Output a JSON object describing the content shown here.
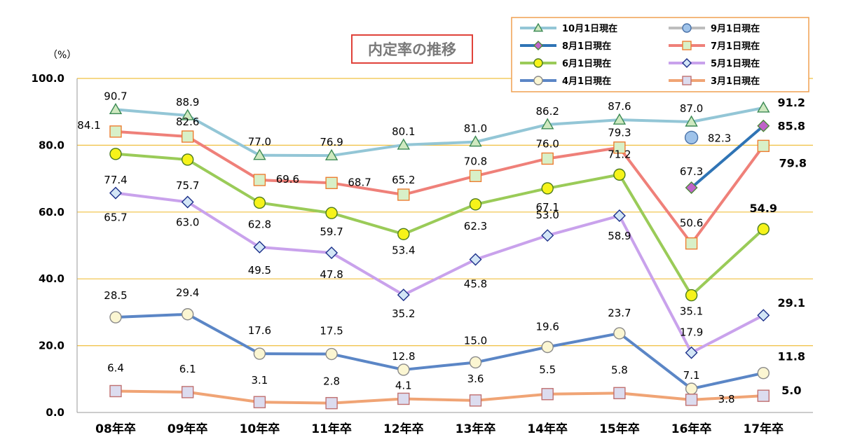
{
  "chart_data": {
    "type": "line",
    "title": "内定率の推移",
    "ylabel": "（%）",
    "ylim": [
      0,
      100
    ],
    "yticks": [
      "0.0",
      "20.0",
      "40.0",
      "60.0",
      "80.0",
      "100.0"
    ],
    "categories": [
      "08年卒",
      "09年卒",
      "10年卒",
      "11年卒",
      "12年卒",
      "13年卒",
      "14年卒",
      "15年卒",
      "16年卒",
      "17年卒"
    ],
    "series": [
      {
        "name": "10月1日現在",
        "color": "#93c6d6",
        "marker": "triangle",
        "markerFill": "#cfe9c0",
        "markerStroke": "#3c8a55",
        "values": [
          90.7,
          88.9,
          77.0,
          76.9,
          80.1,
          81.0,
          86.2,
          87.6,
          87.0,
          91.2
        ],
        "labels": [
          "90.7",
          "88.9",
          "77.0",
          "76.9",
          "80.1",
          "81.0",
          "86.2",
          "87.6",
          "87.0",
          "91.2"
        ]
      },
      {
        "name": "9月1日現在",
        "color": "#bdbdbd",
        "marker": "circle",
        "markerFill": "#9fc3ea",
        "markerStroke": "#4a72a8",
        "values": [
          null,
          null,
          null,
          null,
          null,
          null,
          null,
          null,
          82.3,
          null
        ],
        "labels": [
          "",
          "",
          "",
          "",
          "",
          "",
          "",
          "",
          "82.3",
          ""
        ]
      },
      {
        "name": "8月1日現在",
        "color": "#2f74b5",
        "marker": "diamond",
        "markerFill": "#c063c9",
        "markerStroke": "#4d8a3a",
        "values": [
          null,
          null,
          null,
          null,
          null,
          null,
          null,
          null,
          67.3,
          85.8
        ],
        "labels": [
          "",
          "",
          "",
          "",
          "",
          "",
          "",
          "",
          "67.3",
          "85.8"
        ]
      },
      {
        "name": "7月1日現在",
        "color": "#ef8079",
        "marker": "square",
        "markerFill": "#d8f0c8",
        "markerStroke": "#ed7d31",
        "values": [
          84.1,
          82.6,
          69.6,
          68.7,
          65.2,
          70.8,
          76.0,
          79.3,
          50.6,
          79.8
        ],
        "labels": [
          "84.1",
          "82.6",
          "69.6",
          "68.7",
          "65.2",
          "70.8",
          "76.0",
          "79.3",
          "50.6",
          "79.8"
        ]
      },
      {
        "name": "6月1日現在",
        "color": "#9acb58",
        "marker": "circle",
        "markerFill": "#f6f31a",
        "markerStroke": "#4b7a1f",
        "values": [
          77.4,
          75.7,
          62.8,
          59.7,
          53.4,
          62.3,
          67.1,
          71.2,
          35.1,
          54.9
        ],
        "labels": [
          "77.4",
          "75.7",
          "62.8",
          "59.7",
          "53.4",
          "62.3",
          "67.1",
          "71.2",
          "35.1",
          "54.9"
        ]
      },
      {
        "name": "5月1日現在",
        "color": "#c9a2ec",
        "marker": "diamond",
        "markerFill": "#d3e6f6",
        "markerStroke": "#1b2f8a",
        "values": [
          65.7,
          63.0,
          49.5,
          47.8,
          35.2,
          45.8,
          53.0,
          58.9,
          17.9,
          29.1
        ],
        "labels": [
          "65.7",
          "63.0",
          "49.5",
          "47.8",
          "35.2",
          "45.8",
          "53.0",
          "58.9",
          "17.9",
          "29.1"
        ]
      },
      {
        "name": "4月1日現在",
        "color": "#5b86c6",
        "marker": "circle",
        "markerFill": "#fbf6d2",
        "markerStroke": "#8a8a8a",
        "values": [
          28.5,
          29.4,
          17.6,
          17.5,
          12.8,
          15.0,
          19.6,
          23.7,
          7.1,
          11.8
        ],
        "labels": [
          "28.5",
          "29.4",
          "17.6",
          "17.5",
          "12.8",
          "15.0",
          "19.6",
          "23.7",
          "7.1",
          "11.8"
        ]
      },
      {
        "name": "3月1日現在",
        "color": "#f0a475",
        "marker": "square",
        "markerFill": "#dcdcef",
        "markerStroke": "#c07070",
        "values": [
          6.4,
          6.1,
          3.1,
          2.8,
          4.1,
          3.6,
          5.5,
          5.8,
          3.8,
          5.0
        ],
        "labels": [
          "6.4",
          "6.1",
          "3.1",
          "2.8",
          "4.1",
          "3.6",
          "5.5",
          "5.8",
          "3.8",
          "5.0"
        ]
      }
    ],
    "gridColor": "#f0c040",
    "legend_position": "top-right"
  }
}
